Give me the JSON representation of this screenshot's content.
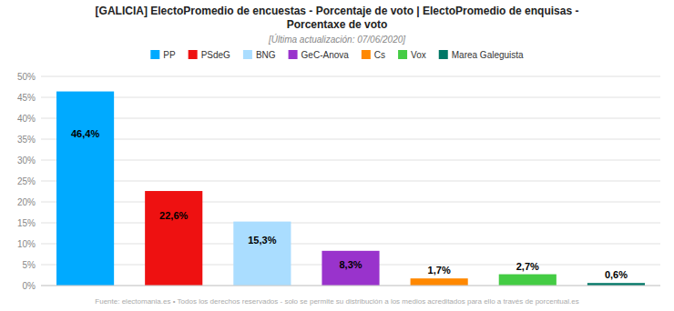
{
  "chart_data": {
    "type": "bar",
    "title": [
      "[GALICIA] ElectoPromedio de encuestas - Porcentaje de voto | ElectoPromedio de enquisas -",
      "Porcentaxe de voto"
    ],
    "subtitle": "[Última actualización: 07/06/2020]",
    "annotations": [
      "Fuente: electomania.es • Todos los derechos reservados - solo se permite su distribución a los medios acreditados para ello a través de porcentual.es"
    ],
    "categories": [
      "PP",
      "PSdeG",
      "BNG",
      "GeC-Anova",
      "Cs",
      "Vox",
      "Marea Galeguista"
    ],
    "values": [
      46.4,
      22.6,
      15.3,
      8.3,
      1.7,
      2.7,
      0.6
    ],
    "value_labels": [
      "46,4%",
      "22,6%",
      "15,3%",
      "8,3%",
      "1,7%",
      "2,7%",
      "0,6%"
    ],
    "colors": [
      "#00AAFF",
      "#EE1111",
      "#AADDFF",
      "#9933CC",
      "#FF8800",
      "#44CC44",
      "#007766"
    ],
    "ylim": [
      0,
      50
    ],
    "yticks": [
      {
        "value": 0,
        "label": "0%"
      },
      {
        "value": 5,
        "label": "5%"
      },
      {
        "value": 10,
        "label": "10%"
      },
      {
        "value": 15,
        "label": "15%"
      },
      {
        "value": 20,
        "label": "20%"
      },
      {
        "value": 25,
        "label": "25%"
      },
      {
        "value": 30,
        "label": "30%"
      },
      {
        "value": 35,
        "label": "35%"
      },
      {
        "value": 40,
        "label": "40%"
      },
      {
        "value": 45,
        "label": "45%"
      },
      {
        "value": 50,
        "label": "50%"
      }
    ],
    "grid": true,
    "data_labels": true,
    "legend": "top",
    "tick_labels": "y"
  }
}
